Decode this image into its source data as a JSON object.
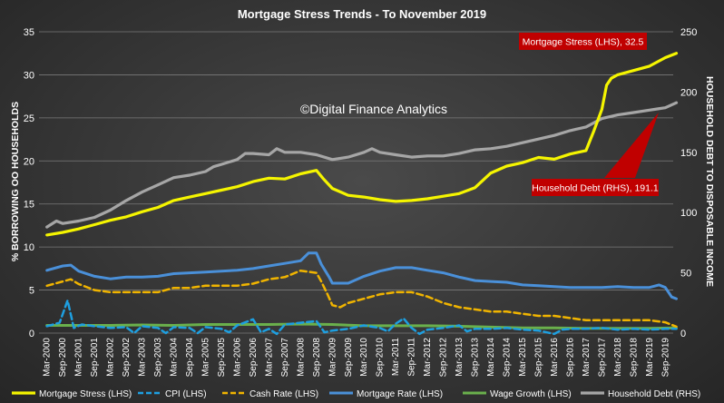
{
  "chart_data": {
    "type": "line",
    "title": "Mortgage Stress Trends - To November 2019",
    "ylabel": "% BORROWING OO HOUSEHOLDS",
    "y2label": "HOUSEHOLD DEBT TO DISPOSABLE INCOME",
    "ylim": [
      0,
      35
    ],
    "y2lim": [
      0,
      250
    ],
    "yticks": [
      0,
      5,
      10,
      15,
      20,
      25,
      30,
      35
    ],
    "y2ticks": [
      0,
      50,
      100,
      150,
      200,
      250
    ],
    "grid": true,
    "legend_position": "bottom",
    "watermark": "©Digital Finance Analytics",
    "x_ticks": [
      "Mar-2000",
      "Sep-2000",
      "Mar-2001",
      "Sep-2001",
      "Mar-2002",
      "Sep-2002",
      "Mar-2003",
      "Sep-2003",
      "Mar-2004",
      "Sep-2004",
      "Mar-2005",
      "Sep-2005",
      "Mar-2006",
      "Sep-2006",
      "Mar-2007",
      "Sep-2007",
      "Mar-2008",
      "Sep-2008",
      "Mar-2009",
      "Sep-2009",
      "Mar-2010",
      "Sep-2010",
      "Mar-2011",
      "Sep-2011",
      "Mar-2012",
      "Sep-2012",
      "Mar-2013",
      "Sep-2013",
      "Mar-2014",
      "Sep-2014",
      "Mar-2015",
      "Sep-2015",
      "Mar-2016",
      "Sep-2016",
      "Mar-2017",
      "Sep-2017",
      "Mar-2018",
      "Sep-2018",
      "Mar-2019",
      "Sep-2019"
    ],
    "series": [
      {
        "name": "Mortgage Stress (LHS)",
        "axis": "left",
        "color": "#f5f500",
        "dash": false,
        "width": 3.2,
        "points": [
          [
            0,
            11.4
          ],
          [
            1,
            11.7
          ],
          [
            2,
            12.1
          ],
          [
            3,
            12.6
          ],
          [
            4,
            13.1
          ],
          [
            5,
            13.5
          ],
          [
            6,
            14.1
          ],
          [
            7,
            14.6
          ],
          [
            8,
            15.4
          ],
          [
            9,
            15.8
          ],
          [
            10,
            16.2
          ],
          [
            11,
            16.6
          ],
          [
            12,
            17.0
          ],
          [
            13,
            17.6
          ],
          [
            14,
            18.0
          ],
          [
            15,
            17.9
          ],
          [
            16,
            18.5
          ],
          [
            17,
            18.9
          ],
          [
            17.4,
            18.0
          ],
          [
            18,
            16.8
          ],
          [
            19,
            16.0
          ],
          [
            20,
            15.8
          ],
          [
            21,
            15.5
          ],
          [
            22,
            15.3
          ],
          [
            23,
            15.4
          ],
          [
            24,
            15.6
          ],
          [
            25,
            15.9
          ],
          [
            26,
            16.2
          ],
          [
            27,
            16.9
          ],
          [
            28,
            18.6
          ],
          [
            29,
            19.4
          ],
          [
            30,
            19.8
          ],
          [
            31,
            20.4
          ],
          [
            32,
            20.2
          ],
          [
            33,
            20.8
          ],
          [
            34,
            21.2
          ],
          [
            34.5,
            23.5
          ],
          [
            35,
            26.0
          ],
          [
            35.3,
            28.8
          ],
          [
            35.6,
            29.6
          ],
          [
            36,
            30.0
          ],
          [
            37,
            30.5
          ],
          [
            38,
            31.0
          ],
          [
            39,
            32.0
          ],
          [
            39.7,
            32.5
          ]
        ]
      },
      {
        "name": "CPI (LHS)",
        "axis": "left",
        "color": "#1e9fe0",
        "dash": true,
        "width": 2.5,
        "points": [
          [
            0,
            0.8
          ],
          [
            0.8,
            1.2
          ],
          [
            1.3,
            3.8
          ],
          [
            1.7,
            0.6
          ],
          [
            2.2,
            1.0
          ],
          [
            3,
            0.8
          ],
          [
            4,
            0.6
          ],
          [
            5,
            0.7
          ],
          [
            5.5,
            0.0
          ],
          [
            6,
            0.8
          ],
          [
            7,
            0.6
          ],
          [
            7.5,
            0.0
          ],
          [
            8,
            0.7
          ],
          [
            9,
            0.6
          ],
          [
            9.5,
            0.0
          ],
          [
            10,
            0.7
          ],
          [
            11,
            0.5
          ],
          [
            11.5,
            0.1
          ],
          [
            12,
            0.9
          ],
          [
            13,
            1.6
          ],
          [
            13.5,
            0.1
          ],
          [
            14,
            0.5
          ],
          [
            14.5,
            -0.1
          ],
          [
            15,
            1.0
          ],
          [
            16,
            1.2
          ],
          [
            17,
            1.4
          ],
          [
            17.5,
            0.1
          ],
          [
            18,
            0.3
          ],
          [
            19,
            0.5
          ],
          [
            20,
            0.9
          ],
          [
            21,
            0.6
          ],
          [
            21.5,
            0.2
          ],
          [
            22,
            1.1
          ],
          [
            22.5,
            1.7
          ],
          [
            23,
            0.6
          ],
          [
            23.5,
            -0.1
          ],
          [
            24,
            0.4
          ],
          [
            25,
            0.6
          ],
          [
            26,
            0.9
          ],
          [
            26.5,
            0.2
          ],
          [
            27,
            0.5
          ],
          [
            28,
            0.5
          ],
          [
            29,
            0.6
          ],
          [
            30,
            0.4
          ],
          [
            31,
            0.3
          ],
          [
            32,
            -0.1
          ],
          [
            32.5,
            0.4
          ],
          [
            33,
            0.5
          ],
          [
            34,
            0.5
          ],
          [
            35,
            0.6
          ],
          [
            36,
            0.4
          ],
          [
            37,
            0.5
          ],
          [
            38,
            0.4
          ],
          [
            39,
            0.5
          ],
          [
            39.7,
            0.5
          ]
        ]
      },
      {
        "name": "Cash Rate (LHS)",
        "axis": "left",
        "color": "#f0b400",
        "dash": true,
        "width": 2.5,
        "points": [
          [
            0,
            5.5
          ],
          [
            1,
            6.0
          ],
          [
            1.5,
            6.25
          ],
          [
            2,
            5.7
          ],
          [
            3,
            5.0
          ],
          [
            4,
            4.75
          ],
          [
            5,
            4.75
          ],
          [
            6,
            4.75
          ],
          [
            7,
            4.75
          ],
          [
            8,
            5.25
          ],
          [
            9,
            5.25
          ],
          [
            10,
            5.5
          ],
          [
            11,
            5.5
          ],
          [
            12,
            5.5
          ],
          [
            13,
            5.75
          ],
          [
            14,
            6.25
          ],
          [
            15,
            6.5
          ],
          [
            16,
            7.25
          ],
          [
            17,
            7.0
          ],
          [
            17.3,
            6.0
          ],
          [
            17.7,
            4.5
          ],
          [
            18,
            3.25
          ],
          [
            18.5,
            3.0
          ],
          [
            19,
            3.5
          ],
          [
            20,
            4.0
          ],
          [
            21,
            4.5
          ],
          [
            22,
            4.75
          ],
          [
            23,
            4.75
          ],
          [
            24,
            4.25
          ],
          [
            25,
            3.5
          ],
          [
            26,
            3.0
          ],
          [
            27,
            2.75
          ],
          [
            28,
            2.5
          ],
          [
            29,
            2.5
          ],
          [
            30,
            2.25
          ],
          [
            31,
            2.0
          ],
          [
            32,
            2.0
          ],
          [
            33,
            1.75
          ],
          [
            34,
            1.5
          ],
          [
            35,
            1.5
          ],
          [
            36,
            1.5
          ],
          [
            37,
            1.5
          ],
          [
            38,
            1.5
          ],
          [
            39,
            1.25
          ],
          [
            39.7,
            0.75
          ]
        ]
      },
      {
        "name": "Mortgage Rate (LHS)",
        "axis": "left",
        "color": "#4a90d9",
        "dash": false,
        "width": 3,
        "points": [
          [
            0,
            7.3
          ],
          [
            1,
            7.8
          ],
          [
            1.5,
            7.9
          ],
          [
            2,
            7.2
          ],
          [
            3,
            6.6
          ],
          [
            4,
            6.3
          ],
          [
            5,
            6.5
          ],
          [
            6,
            6.5
          ],
          [
            7,
            6.6
          ],
          [
            8,
            6.9
          ],
          [
            9,
            7.0
          ],
          [
            10,
            7.1
          ],
          [
            11,
            7.2
          ],
          [
            12,
            7.3
          ],
          [
            13,
            7.5
          ],
          [
            14,
            7.8
          ],
          [
            15,
            8.1
          ],
          [
            16,
            8.4
          ],
          [
            16.5,
            9.3
          ],
          [
            17,
            9.3
          ],
          [
            17.3,
            8.0
          ],
          [
            17.8,
            6.5
          ],
          [
            18,
            5.8
          ],
          [
            19,
            5.8
          ],
          [
            20,
            6.6
          ],
          [
            21,
            7.2
          ],
          [
            22,
            7.6
          ],
          [
            23,
            7.6
          ],
          [
            24,
            7.3
          ],
          [
            25,
            7.0
          ],
          [
            26,
            6.5
          ],
          [
            27,
            6.1
          ],
          [
            28,
            6.0
          ],
          [
            29,
            5.9
          ],
          [
            30,
            5.6
          ],
          [
            31,
            5.5
          ],
          [
            32,
            5.4
          ],
          [
            33,
            5.3
          ],
          [
            34,
            5.3
          ],
          [
            35,
            5.3
          ],
          [
            36,
            5.4
          ],
          [
            37,
            5.3
          ],
          [
            38,
            5.3
          ],
          [
            38.6,
            5.6
          ],
          [
            39,
            5.3
          ],
          [
            39.4,
            4.2
          ],
          [
            39.7,
            4.0
          ]
        ]
      },
      {
        "name": "Wage Growth (LHS)",
        "axis": "left",
        "color": "#6ab04c",
        "dash": false,
        "width": 3,
        "points": [
          [
            0,
            0.9
          ],
          [
            2,
            0.9
          ],
          [
            4,
            0.9
          ],
          [
            6,
            0.95
          ],
          [
            8,
            0.9
          ],
          [
            10,
            1.0
          ],
          [
            12,
            1.0
          ],
          [
            14,
            1.0
          ],
          [
            16,
            1.05
          ],
          [
            18,
            1.0
          ],
          [
            20,
            0.85
          ],
          [
            22,
            0.85
          ],
          [
            24,
            0.85
          ],
          [
            26,
            0.8
          ],
          [
            28,
            0.7
          ],
          [
            30,
            0.6
          ],
          [
            32,
            0.6
          ],
          [
            34,
            0.55
          ],
          [
            36,
            0.55
          ],
          [
            38,
            0.55
          ],
          [
            39.7,
            0.6
          ]
        ]
      },
      {
        "name": "Household Debt (RHS)",
        "axis": "right",
        "color": "#a6a6a6",
        "dash": false,
        "width": 3.2,
        "points": [
          [
            0,
            88
          ],
          [
            0.6,
            93
          ],
          [
            1,
            91
          ],
          [
            2,
            93
          ],
          [
            3,
            96
          ],
          [
            4,
            102
          ],
          [
            5,
            110
          ],
          [
            6,
            117
          ],
          [
            7,
            123
          ],
          [
            8,
            129
          ],
          [
            9,
            131
          ],
          [
            10,
            134
          ],
          [
            10.5,
            138
          ],
          [
            11,
            140
          ],
          [
            12,
            144
          ],
          [
            12.5,
            149
          ],
          [
            13,
            149
          ],
          [
            14,
            148
          ],
          [
            14.5,
            153
          ],
          [
            15,
            150
          ],
          [
            16,
            150
          ],
          [
            17,
            148
          ],
          [
            18,
            144
          ],
          [
            19,
            146
          ],
          [
            20,
            150
          ],
          [
            20.5,
            153
          ],
          [
            21,
            150
          ],
          [
            22,
            148
          ],
          [
            23,
            146
          ],
          [
            24,
            147
          ],
          [
            25,
            147
          ],
          [
            26,
            149
          ],
          [
            27,
            152
          ],
          [
            28,
            153
          ],
          [
            29,
            155
          ],
          [
            30,
            158
          ],
          [
            31,
            161
          ],
          [
            32,
            164
          ],
          [
            33,
            168
          ],
          [
            34,
            171
          ],
          [
            35,
            178
          ],
          [
            36,
            181
          ],
          [
            37,
            183
          ],
          [
            38,
            185
          ],
          [
            38.5,
            186
          ],
          [
            39,
            187
          ],
          [
            39.7,
            191.1
          ]
        ]
      }
    ],
    "annotations": [
      {
        "text": "Mortgage Stress (LHS), 32.5",
        "series": "Mortgage Stress (LHS)"
      },
      {
        "text": "Household Debt (RHS), 191.1",
        "series": "Household Debt (RHS)"
      }
    ]
  }
}
